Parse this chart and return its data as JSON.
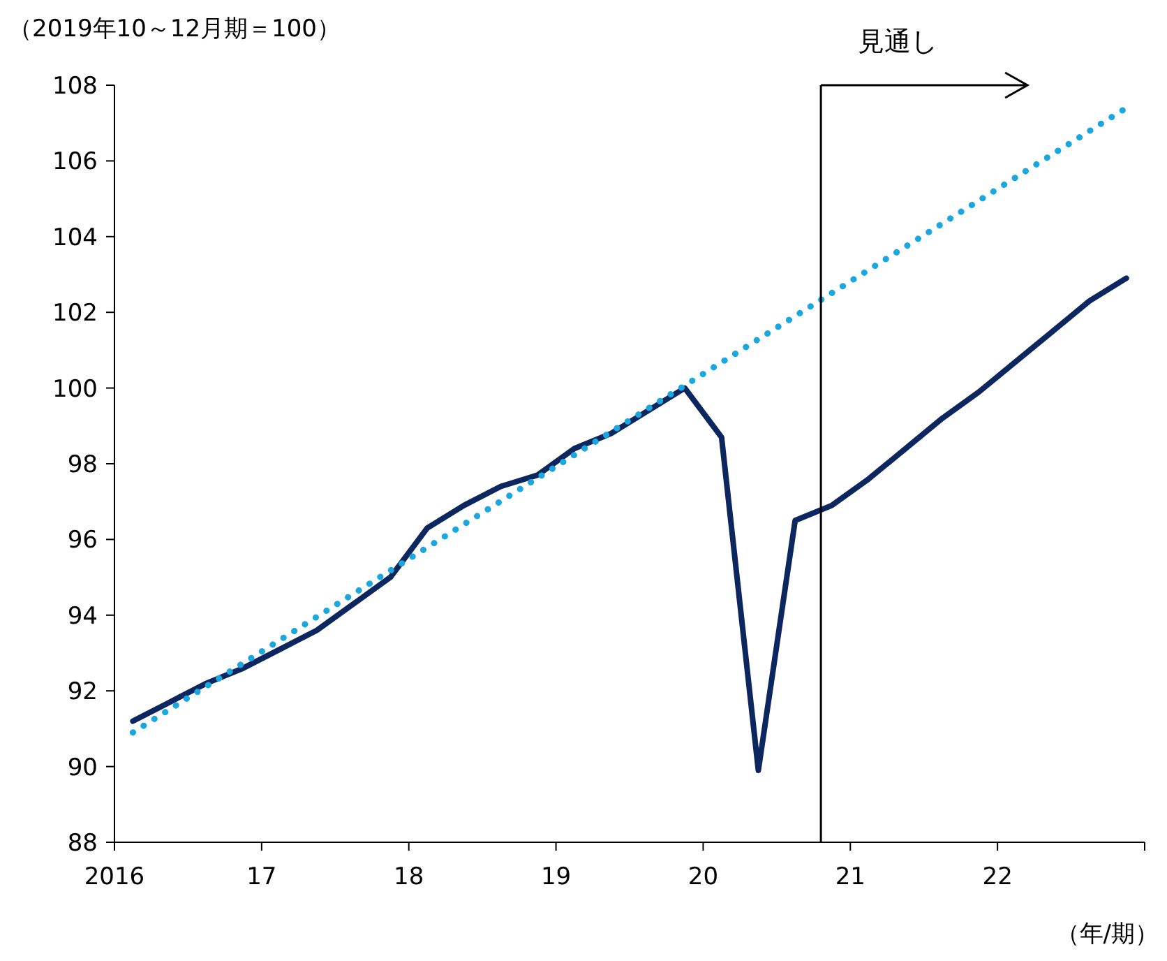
{
  "chart_data": {
    "type": "line",
    "ylabel": "（2019年10～12月期＝100）",
    "xlabel": "（年/期）",
    "xlim": [
      2016,
      2023
    ],
    "xticks": [
      {
        "value": 2016,
        "label": "2016"
      },
      {
        "value": 2017,
        "label": "17"
      },
      {
        "value": 2018,
        "label": "18"
      },
      {
        "value": 2019,
        "label": "19"
      },
      {
        "value": 2020,
        "label": "20"
      },
      {
        "value": 2021,
        "label": "21"
      },
      {
        "value": 2022,
        "label": "22"
      },
      {
        "value": 2023,
        "label": null
      }
    ],
    "ylim": [
      88,
      108
    ],
    "yticks": [
      88,
      90,
      92,
      94,
      96,
      98,
      100,
      102,
      104,
      106,
      108
    ],
    "grid": false,
    "marker": "none",
    "series": [
      {
        "color": "#0c2660",
        "line_style": "solid",
        "x": [
          2016.125,
          2016.375,
          2016.625,
          2016.875,
          2017.125,
          2017.375,
          2017.625,
          2017.875,
          2018.125,
          2018.375,
          2018.625,
          2018.875,
          2019.125,
          2019.375,
          2019.625,
          2019.875,
          2020.125,
          2020.375,
          2020.625,
          2020.875,
          2021.125,
          2021.375,
          2021.625,
          2021.875,
          2022.125,
          2022.375,
          2022.625,
          2022.875
        ],
        "values": [
          91.2,
          91.7,
          92.2,
          92.6,
          93.1,
          93.6,
          94.3,
          95.0,
          96.3,
          96.9,
          97.4,
          97.7,
          98.4,
          98.8,
          99.4,
          100.0,
          98.7,
          89.9,
          96.5,
          96.9,
          97.6,
          98.4,
          99.2,
          99.9,
          100.7,
          101.5,
          102.3,
          102.9
        ]
      },
      {
        "color": "#1aa7e0",
        "line_style": "dotted",
        "x": [
          2016.125,
          2022.875
        ],
        "values": [
          90.9,
          107.4
        ]
      }
    ],
    "ref_lines": [
      {
        "axis": "x",
        "value": 2020.8,
        "label": "見通し",
        "color": "#000000",
        "line_style": "solid"
      }
    ]
  }
}
